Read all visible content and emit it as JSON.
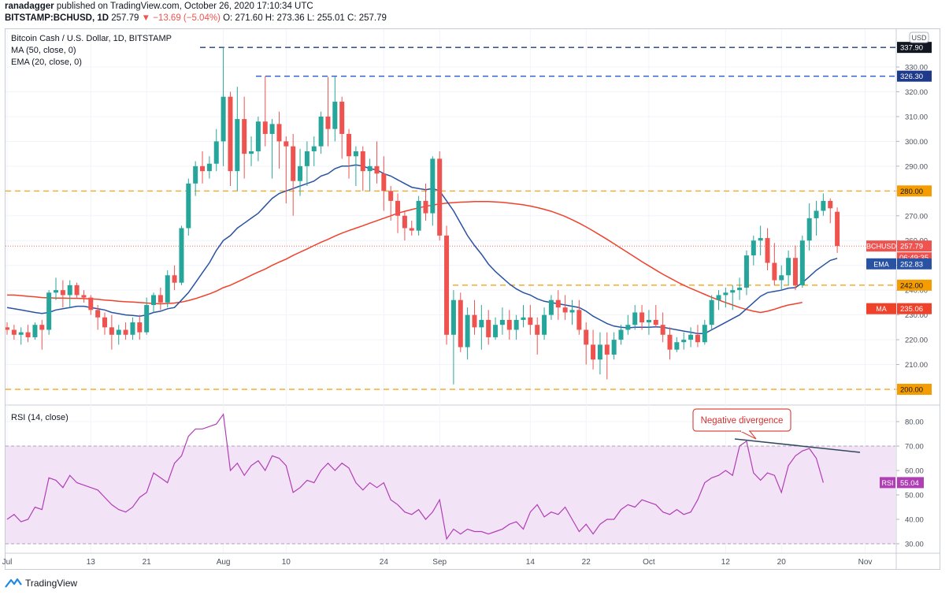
{
  "header": {
    "line1_user": "ranadagger",
    "line1_text": "published on TradingView.com, October 26, 2020 17:10:34 UTC",
    "symbol": "BITSTAMP:BCHUSD, 1D",
    "last": "257.79",
    "change": "▼ −13.69 (−5.04%)",
    "ohlc": "O: 271.60 H: 273.36 L: 255.01 C: 257.79"
  },
  "legend": {
    "title": "Bitcoin Cash / U.S. Dollar, 1D, BITSTAMP",
    "ma": "MA (50, close, 0)",
    "ema": "EMA (20, close, 0)",
    "rsi": "RSI (14, close)"
  },
  "annotation": "Negative divergence",
  "footer": {
    "brand": "TradingView"
  },
  "colors": {
    "up": "#26a69a",
    "down": "#ef5350",
    "ema": "#2952a3",
    "ma": "#f0412b",
    "rsi": "#b03fb5",
    "rsi_band": "#f3e3f7",
    "support": "#f59c00",
    "resistance": "#1f3e78"
  },
  "chart_data": {
    "type": "candlestick",
    "price_axis": {
      "ticks": [
        "200.00",
        "210.00",
        "220.00",
        "230.00",
        "240.00",
        "250.00",
        "260.00",
        "270.00",
        "280.00",
        "290.00",
        "300.00",
        "310.00",
        "320.00",
        "330.00"
      ],
      "currency": "USD"
    },
    "x_ticks": [
      {
        "label": "Jul",
        "day": 0
      },
      {
        "label": "13",
        "day": 12
      },
      {
        "label": "21",
        "day": 20
      },
      {
        "label": "Aug",
        "day": 31
      },
      {
        "label": "10",
        "day": 40
      },
      {
        "label": "24",
        "day": 54
      },
      {
        "label": "Sep",
        "day": 62
      },
      {
        "label": "14",
        "day": 75
      },
      {
        "label": "22",
        "day": 83
      },
      {
        "label": "Oct",
        "day": 92
      },
      {
        "label": "12",
        "day": 103
      },
      {
        "label": "20",
        "day": 111
      },
      {
        "label": "Nov",
        "day": 123
      }
    ],
    "candles": [
      [
        225,
        227,
        222,
        224
      ],
      [
        224,
        226,
        220,
        222
      ],
      [
        222,
        225,
        218,
        223
      ],
      [
        223,
        226,
        219,
        221
      ],
      [
        221,
        227,
        220,
        226
      ],
      [
        226,
        228,
        216,
        224
      ],
      [
        224,
        240,
        222,
        239
      ],
      [
        239,
        245,
        236,
        240
      ],
      [
        240,
        244,
        233,
        238
      ],
      [
        238,
        244,
        233,
        242
      ],
      [
        242,
        243,
        237,
        238
      ],
      [
        238,
        240,
        235,
        237
      ],
      [
        237,
        238,
        230,
        232
      ],
      [
        232,
        234,
        224,
        229
      ],
      [
        229,
        231,
        222,
        225
      ],
      [
        225,
        230,
        216,
        222
      ],
      [
        222,
        226,
        218,
        224
      ],
      [
        224,
        227,
        220,
        222
      ],
      [
        222,
        229,
        220,
        227
      ],
      [
        227,
        230,
        220,
        223
      ],
      [
        223,
        237,
        222,
        234
      ],
      [
        234,
        239,
        231,
        238
      ],
      [
        238,
        241,
        232,
        235
      ],
      [
        235,
        248,
        233,
        246
      ],
      [
        246,
        250,
        240,
        243
      ],
      [
        243,
        266,
        242,
        265
      ],
      [
        265,
        285,
        262,
        283
      ],
      [
        283,
        292,
        278,
        290
      ],
      [
        290,
        296,
        283,
        288
      ],
      [
        288,
        294,
        285,
        291
      ],
      [
        291,
        305,
        288,
        300
      ],
      [
        300,
        337.9,
        290,
        318
      ],
      [
        318,
        320,
        282,
        288
      ],
      [
        288,
        322,
        280,
        309
      ],
      [
        309,
        318,
        285,
        295
      ],
      [
        295,
        302,
        290,
        296
      ],
      [
        296,
        310,
        292,
        308
      ],
      [
        308,
        326.3,
        298,
        303
      ],
      [
        303,
        309,
        285,
        307
      ],
      [
        307,
        312,
        289,
        300
      ],
      [
        300,
        302,
        275,
        298
      ],
      [
        298,
        303,
        270,
        284
      ],
      [
        284,
        297,
        278,
        290
      ],
      [
        290,
        300,
        282,
        296
      ],
      [
        296,
        302,
        290,
        298
      ],
      [
        298,
        312,
        295,
        310
      ],
      [
        310,
        326,
        298,
        305
      ],
      [
        305,
        326,
        300,
        316
      ],
      [
        316,
        318,
        293,
        303
      ],
      [
        303,
        305,
        285,
        294
      ],
      [
        294,
        298,
        282,
        296
      ],
      [
        296,
        298,
        280,
        288
      ],
      [
        288,
        293,
        280,
        290
      ],
      [
        290,
        300,
        283,
        287
      ],
      [
        287,
        294,
        272,
        280
      ],
      [
        280,
        282,
        268,
        276
      ],
      [
        276,
        279,
        263,
        270
      ],
      [
        270,
        272,
        260,
        265
      ],
      [
        265,
        268,
        262,
        264
      ],
      [
        264,
        278,
        262,
        276
      ],
      [
        276,
        283,
        268,
        271
      ],
      [
        271,
        294,
        266,
        293
      ],
      [
        293,
        296,
        260,
        262
      ],
      [
        262,
        266,
        218,
        222
      ],
      [
        222,
        240,
        202,
        236
      ],
      [
        236,
        239,
        215,
        217
      ],
      [
        217,
        233,
        212,
        230
      ],
      [
        230,
        236,
        222,
        225
      ],
      [
        225,
        234,
        216,
        228
      ],
      [
        228,
        232,
        218,
        221
      ],
      [
        221,
        229,
        220,
        226
      ],
      [
        226,
        233,
        222,
        228
      ],
      [
        228,
        232,
        220,
        224
      ],
      [
        224,
        230,
        220,
        228
      ],
      [
        228,
        234,
        225,
        229
      ],
      [
        229,
        234,
        222,
        226
      ],
      [
        226,
        229,
        214,
        222
      ],
      [
        222,
        233,
        220,
        230
      ],
      [
        230,
        238,
        228,
        236
      ],
      [
        236,
        240,
        228,
        233
      ],
      [
        233,
        238,
        228,
        231
      ],
      [
        231,
        236,
        226,
        232
      ],
      [
        232,
        236,
        222,
        224
      ],
      [
        224,
        227,
        210,
        218
      ],
      [
        218,
        224,
        208,
        212
      ],
      [
        212,
        223,
        206,
        218
      ],
      [
        218,
        223,
        204,
        214
      ],
      [
        214,
        223,
        212,
        220
      ],
      [
        220,
        226,
        218,
        224
      ],
      [
        224,
        230,
        222,
        226
      ],
      [
        226,
        234,
        224,
        231
      ],
      [
        231,
        234,
        224,
        227
      ],
      [
        227,
        232,
        222,
        228
      ],
      [
        228,
        234,
        225,
        226
      ],
      [
        226,
        231,
        219,
        222
      ],
      [
        222,
        225,
        212,
        216
      ],
      [
        216,
        221,
        215,
        219
      ],
      [
        219,
        223,
        216,
        220
      ],
      [
        220,
        225,
        217,
        222
      ],
      [
        222,
        226,
        217,
        219
      ],
      [
        219,
        228,
        218,
        226
      ],
      [
        226,
        238,
        224,
        236
      ],
      [
        236,
        240,
        232,
        238
      ],
      [
        238,
        241,
        233,
        239
      ],
      [
        239,
        242,
        232,
        240
      ],
      [
        240,
        245,
        236,
        241
      ],
      [
        241,
        256,
        238,
        254
      ],
      [
        254,
        262,
        250,
        260
      ],
      [
        260,
        266,
        254,
        261
      ],
      [
        261,
        265,
        248,
        251
      ],
      [
        251,
        259,
        242,
        244
      ],
      [
        244,
        250,
        240,
        246
      ],
      [
        246,
        256,
        242,
        253
      ],
      [
        253,
        258,
        240,
        242
      ],
      [
        242,
        262,
        241,
        260
      ],
      [
        260,
        275,
        256,
        269
      ],
      [
        269,
        276,
        262,
        272
      ],
      [
        272,
        279,
        270,
        276
      ],
      [
        276,
        277,
        267,
        273
      ],
      [
        271.6,
        273.36,
        255.01,
        257.79
      ]
    ],
    "ema20": [
      233,
      232.5,
      232,
      231.5,
      231,
      230.6,
      231,
      232,
      232.5,
      233,
      233.5,
      233.5,
      233,
      232.5,
      232,
      231,
      230.5,
      230,
      229.8,
      229.5,
      230,
      231,
      231.5,
      232.5,
      233,
      236,
      239,
      243,
      247,
      251,
      256,
      260,
      262,
      265,
      267,
      269,
      271,
      274,
      277,
      279,
      280,
      281,
      282,
      283,
      284,
      286,
      287,
      289,
      290,
      290,
      290.5,
      290,
      289,
      288.5,
      287,
      286,
      284.5,
      283,
      281.5,
      281,
      280.5,
      281,
      280,
      276,
      272,
      267,
      262,
      258,
      254.5,
      250.5,
      247.5,
      245,
      242.5,
      240.5,
      239,
      238,
      236.5,
      235.5,
      235,
      234.5,
      234,
      233.5,
      233,
      231.5,
      229.5,
      228,
      226.5,
      225.5,
      225,
      224.8,
      225,
      225,
      225,
      225.2,
      225,
      224.5,
      224,
      223.5,
      223,
      222.5,
      222.5,
      224,
      225.5,
      227,
      228.5,
      230,
      232.5,
      235,
      237.5,
      239,
      239.5,
      240,
      240.8,
      241,
      243,
      245.5,
      248,
      250,
      252,
      252.83
    ],
    "sma50": [
      238,
      238,
      237.8,
      237.5,
      237.3,
      237,
      236.9,
      236.8,
      236.8,
      236.7,
      236.7,
      236.6,
      236.5,
      236.3,
      236,
      235.8,
      235.5,
      235.3,
      235.2,
      235,
      234.8,
      234.6,
      234.5,
      234.6,
      234.8,
      235.2,
      235.8,
      236.6,
      237.5,
      238.5,
      239.6,
      241,
      242,
      243.3,
      244.6,
      246,
      247.3,
      248.5,
      250,
      251.3,
      252.5,
      254,
      255.3,
      256.6,
      258,
      259.3,
      260.5,
      261.8,
      263,
      264,
      265,
      266,
      267,
      268,
      269,
      270,
      271,
      271.8,
      272.5,
      273.2,
      273.8,
      274.3,
      274.8,
      275.1,
      275.3,
      275.5,
      275.6,
      275.7,
      275.7,
      275.7,
      275.6,
      275.4,
      275.1,
      274.8,
      274.4,
      273.9,
      273.3,
      272.6,
      271.8,
      270.8,
      269.7,
      268.4,
      267,
      265.5,
      263.9,
      262.2,
      260.5,
      258.7,
      256.9,
      255.1,
      253.3,
      251.5,
      249.8,
      248.1,
      246.4,
      244.9,
      243.4,
      242,
      240.7,
      239.5,
      238.3,
      237.1,
      236,
      235,
      234,
      233,
      232.2,
      231.5,
      231,
      231.5,
      232.3,
      233.2,
      234,
      234.5,
      235.06
    ],
    "rsi": [
      40,
      42,
      39,
      40,
      45,
      44,
      57,
      56,
      53,
      58,
      55,
      54,
      53,
      52,
      49,
      46,
      44,
      43,
      45,
      49,
      51,
      59,
      57,
      55,
      63,
      66,
      74,
      77,
      77,
      78,
      79,
      83,
      60,
      63,
      58,
      62,
      64,
      60,
      66,
      65,
      62,
      51,
      53,
      56,
      55,
      60,
      63,
      60,
      63,
      61,
      55,
      52,
      55,
      53,
      55,
      48,
      46,
      43,
      42,
      44,
      40,
      43,
      48,
      32,
      36,
      34,
      36,
      35,
      35,
      34,
      35,
      36,
      38,
      39,
      36,
      43,
      46,
      41,
      43,
      42,
      45,
      40,
      35,
      38,
      34,
      38,
      40,
      40,
      44,
      46,
      45,
      48,
      47,
      46,
      43,
      42,
      44,
      42,
      43,
      48,
      55,
      57,
      58,
      60,
      58,
      70,
      72,
      59,
      56,
      59,
      58,
      51,
      62,
      66,
      68,
      69,
      65,
      55.04
    ],
    "rsi_axis": {
      "ticks": [
        "30.00",
        "40.00",
        "50.00",
        "60.00",
        "70.00",
        "80.00"
      ],
      "lower": 30,
      "upper": 70
    },
    "levels": {
      "resistance_high": "337.90",
      "resistance_326": "326.30",
      "support_280": "280.00",
      "support_242": "242.00",
      "support_200": "200.00"
    },
    "labels": {
      "price_tag": "BCHUSD",
      "price": "257.79",
      "countdown": "06:49:35",
      "ema_tag": "EMA",
      "ema": "252.83",
      "ma_tag": "MA",
      "ma": "235.06",
      "rsi_tag": "RSI",
      "rsi": "55.04"
    }
  }
}
